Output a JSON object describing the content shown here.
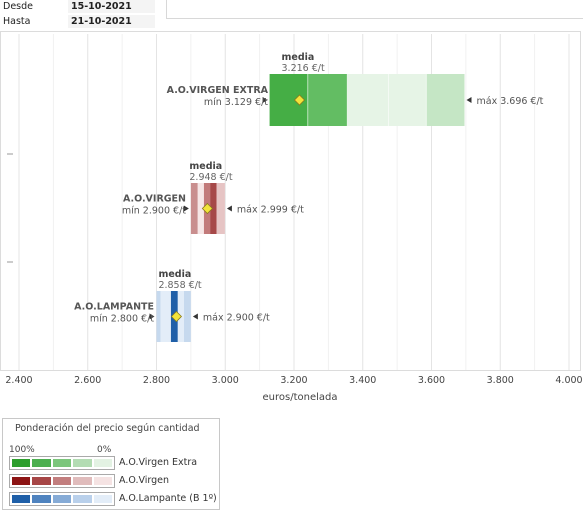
{
  "filters": {
    "desde_label": "Desde",
    "desde_value": "15-10-2021",
    "hasta_label": "Hasta",
    "hasta_value": "21-10-2021"
  },
  "legend": {
    "title": "Ponderación del precio según cantidad",
    "high_label": "100%",
    "low_label": "0%",
    "items": [
      {
        "name": "A.O.Virgen Extra",
        "colors": [
          "#2d9e2d",
          "#4caf50",
          "#7cc67c",
          "#b3dcb3",
          "#e3f2e3"
        ]
      },
      {
        "name": "A.O.Virgen",
        "colors": [
          "#8c1414",
          "#a64646",
          "#c27e7e",
          "#e0bcbc",
          "#f5e3e3"
        ]
      },
      {
        "name": "A.O.Lampante (B 1º)",
        "colors": [
          "#1f5fa8",
          "#4f83bf",
          "#86abd6",
          "#b9d0eb",
          "#e3edf8"
        ]
      }
    ]
  },
  "chart_data": {
    "type": "box",
    "xlabel": "euros/tonelada",
    "xlim": [
      2400,
      4000
    ],
    "xticks": [
      "2.400",
      "2.600",
      "2.800",
      "3.000",
      "3.200",
      "3.400",
      "3.600",
      "3.800",
      "4.000"
    ],
    "xtick_values": [
      2400,
      2600,
      2800,
      3000,
      3200,
      3400,
      3600,
      3800,
      4000
    ],
    "series": [
      {
        "name": "A.O.VIRGEN EXTRA",
        "min": 3129,
        "min_label": "mín 3.129 €/t",
        "max": 3696,
        "max_label": "máx 3.696 €/t",
        "mean": 3216,
        "mean_title": "media",
        "mean_label": "3.216 €/t",
        "segments": [
          {
            "from": 3129,
            "to": 3240,
            "color": "#45ae45"
          },
          {
            "from": 3240,
            "to": 3355,
            "color": "#63bd63"
          },
          {
            "from": 3355,
            "to": 3585,
            "color": "#e6f4e6"
          },
          {
            "from": 3585,
            "to": 3696,
            "color": "#c5e6c5"
          }
        ],
        "dividers": [
          3240,
          3355,
          3475,
          3585
        ]
      },
      {
        "name": "A.O.VIRGEN",
        "min": 2900,
        "min_label": "mín 2.900 €/t",
        "max": 2999,
        "max_label": "máx 2.999 €/t",
        "mean": 2948,
        "mean_title": "media",
        "mean_label": "2.948 €/t",
        "segments": [
          {
            "from": 2900,
            "to": 2920,
            "color": "#c98e8e"
          },
          {
            "from": 2920,
            "to": 2938,
            "color": "#f6e6e6"
          },
          {
            "from": 2938,
            "to": 2956,
            "color": "#c27a7a"
          },
          {
            "from": 2956,
            "to": 2975,
            "color": "#a64848"
          },
          {
            "from": 2975,
            "to": 2999,
            "color": "#e6c4c4"
          }
        ],
        "dividers": []
      },
      {
        "name": "A.O.LAMPANTE",
        "min": 2800,
        "min_label": "mín 2.800 €/t",
        "max": 2900,
        "max_label": "máx 2.900 €/t",
        "mean": 2858,
        "mean_title": "media",
        "mean_label": "2.858 €/t",
        "segments": [
          {
            "from": 2800,
            "to": 2812,
            "color": "#c6d9ee"
          },
          {
            "from": 2812,
            "to": 2842,
            "color": "#e3edf8"
          },
          {
            "from": 2842,
            "to": 2862,
            "color": "#1f5fa8"
          },
          {
            "from": 2862,
            "to": 2880,
            "color": "#e3edf8"
          },
          {
            "from": 2880,
            "to": 2900,
            "color": "#c6d9ee"
          }
        ],
        "dividers": []
      }
    ]
  }
}
